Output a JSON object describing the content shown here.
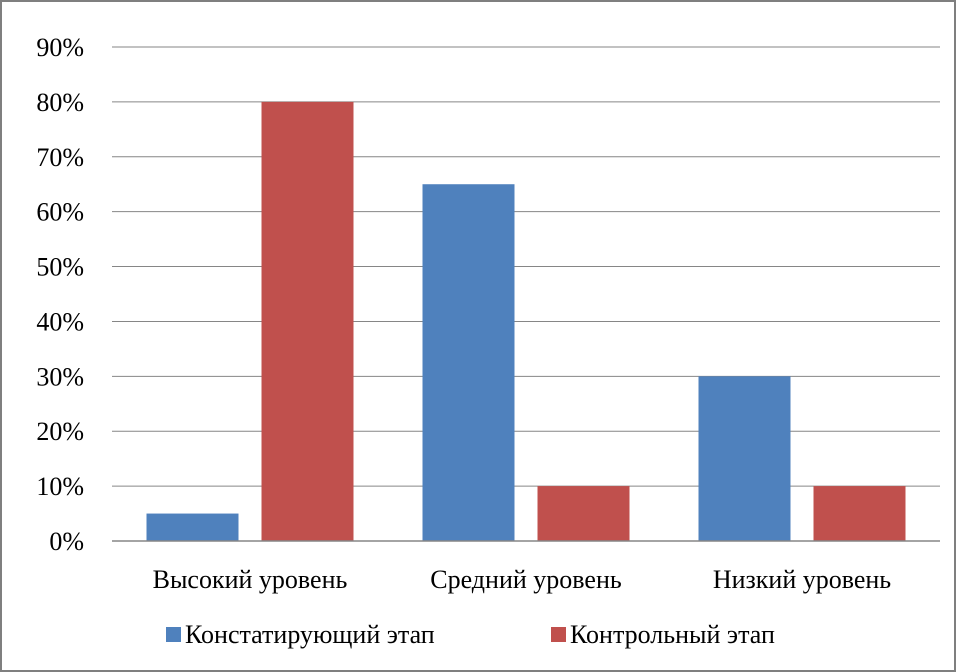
{
  "chart_data": {
    "type": "bar",
    "categories": [
      "Высокий уровень",
      "Средний уровень",
      "Низкий уровень"
    ],
    "series": [
      {
        "name": "Констатирующий этап",
        "values": [
          5,
          65,
          30
        ],
        "color": "#4F81BD"
      },
      {
        "name": "Контрольный этап",
        "values": [
          80,
          10,
          10
        ],
        "color": "#C0504D"
      }
    ],
    "title": "",
    "xlabel": "",
    "ylabel": "",
    "ylim": [
      0,
      90
    ],
    "y_tick_step": 10,
    "y_tick_format": "percent",
    "y_ticks": [
      "0%",
      "10%",
      "20%",
      "30%",
      "40%",
      "50%",
      "60%",
      "70%",
      "80%",
      "90%"
    ],
    "grid": "horizontal",
    "legend_position": "bottom"
  }
}
